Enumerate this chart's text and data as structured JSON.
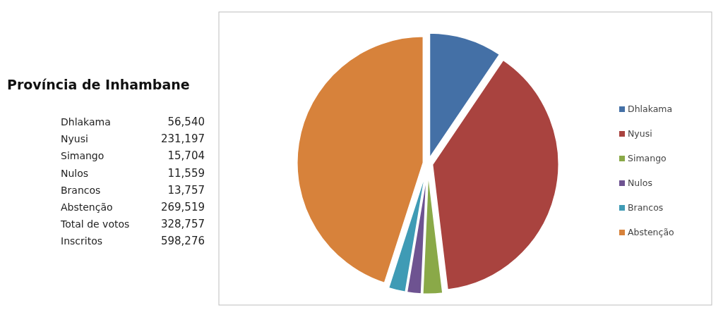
{
  "chart_data": {
    "type": "pie",
    "title": "Província de Inhambane",
    "categories": [
      "Dhlakama",
      "Nyusi",
      "Simango",
      "Nulos",
      "Brancos",
      "Abstenção"
    ],
    "values": [
      9.45,
      38.64,
      2.63,
      1.93,
      2.3,
      45.05
    ],
    "colors": [
      "#4470a6",
      "#a9433f",
      "#8aa948",
      "#6e5391",
      "#3f9bb5",
      "#d7823b"
    ],
    "annotations": [
      "Dhlakama",
      "56,540",
      "Nyusi",
      "231,197",
      "Simango",
      "15,704",
      "Nulos",
      "11,559",
      "Brancos",
      "13,757",
      "Abstenção",
      "269,519",
      "Total de votos",
      "328,757",
      "Inscritos",
      "598,276"
    ],
    "legend": "right"
  }
}
